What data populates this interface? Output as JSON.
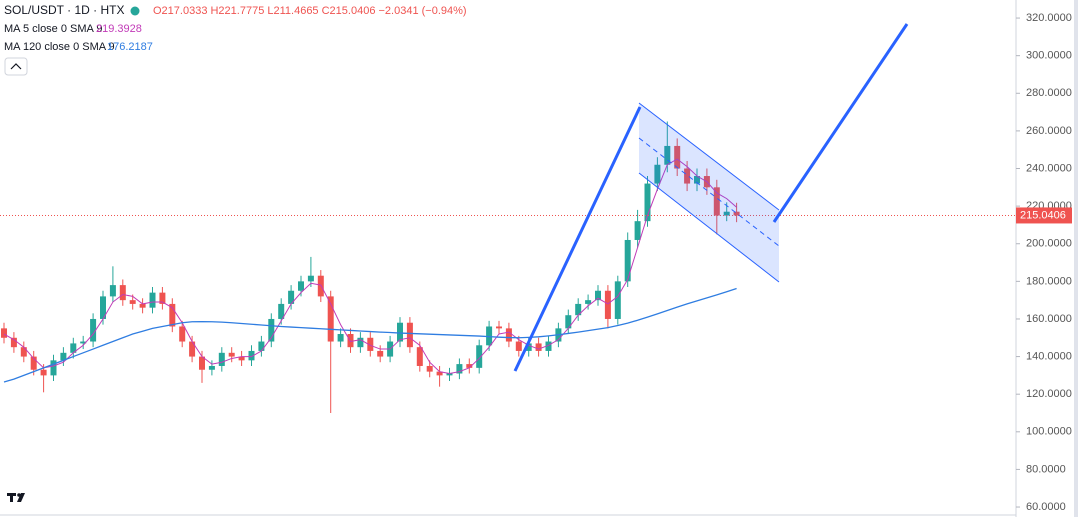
{
  "chart_data": {
    "type": "candlestick",
    "title": "SOL/USDT · 1D · HTX",
    "ohlc_legend": "O217.0333 H221.7775 L211.4665 C215.0406 −2.0341 (−0.94%)",
    "open": [
      155,
      150,
      145,
      140,
      133,
      130,
      138,
      142,
      147,
      148,
      160,
      172,
      178,
      170,
      168,
      166,
      174,
      168,
      156,
      148,
      140,
      133,
      135,
      142,
      140,
      138,
      143,
      148,
      160,
      168,
      175,
      180,
      183,
      172,
      148,
      152,
      145,
      150,
      143,
      140,
      148,
      158,
      145,
      135,
      132,
      130,
      131,
      136,
      134,
      146,
      156,
      155,
      148,
      143,
      147,
      143,
      148,
      155,
      162,
      168,
      170,
      175,
      160,
      180,
      202,
      212,
      232,
      242,
      252,
      240,
      232,
      236,
      230,
      215,
      217.0333
    ],
    "high": [
      158,
      153,
      148,
      143,
      136,
      141,
      145,
      150,
      151,
      163,
      175,
      188,
      181,
      173,
      171,
      177,
      177,
      171,
      159,
      151,
      143,
      138,
      145,
      145,
      143,
      146,
      151,
      163,
      171,
      178,
      183,
      193,
      186,
      175,
      155,
      155,
      153,
      153,
      146,
      151,
      161,
      161,
      148,
      138,
      135,
      134,
      139,
      139,
      149,
      159,
      159,
      158,
      151,
      150,
      150,
      151,
      158,
      165,
      171,
      173,
      178,
      178,
      183,
      206,
      218,
      236,
      246,
      265,
      256,
      244,
      240,
      240,
      234,
      222,
      221.7775
    ],
    "low": [
      147,
      142,
      137,
      130,
      121,
      127,
      135,
      139,
      144,
      145,
      157,
      169,
      167,
      165,
      163,
      163,
      165,
      153,
      145,
      137,
      126,
      130,
      132,
      137,
      135,
      135,
      140,
      145,
      157,
      165,
      172,
      177,
      169,
      110,
      145,
      142,
      142,
      140,
      137,
      137,
      145,
      142,
      132,
      129,
      124,
      127,
      128,
      131,
      131,
      143,
      152,
      145,
      140,
      140,
      140,
      140,
      145,
      152,
      159,
      165,
      167,
      155,
      157,
      177,
      198,
      209,
      228,
      238,
      236,
      228,
      228,
      226,
      205,
      212,
      211.4665
    ],
    "close": [
      150,
      145,
      140,
      133,
      130,
      138,
      142,
      147,
      148,
      160,
      172,
      178,
      170,
      168,
      166,
      174,
      168,
      156,
      148,
      140,
      133,
      135,
      142,
      140,
      138,
      143,
      148,
      160,
      168,
      175,
      180,
      183,
      172,
      148,
      152,
      145,
      150,
      143,
      140,
      148,
      158,
      145,
      135,
      132,
      130,
      131,
      136,
      134,
      146,
      156,
      155,
      148,
      143,
      147,
      143,
      148,
      155,
      162,
      168,
      170,
      175,
      160,
      180,
      202,
      212,
      232,
      242,
      252,
      240,
      232,
      236,
      230,
      215,
      217.0333,
      215.0406
    ],
    "up_color": "#26a69a",
    "down_color": "#ef5350",
    "overlays": [
      {
        "name": "MA 5 close 0 SMA 9",
        "color": "#c23bb8",
        "values": [
          152,
          149,
          145,
          139,
          134,
          135,
          137,
          142,
          146,
          152,
          160,
          169,
          173,
          172,
          168,
          169,
          169,
          166,
          158,
          148,
          140,
          136,
          137,
          139,
          140,
          140,
          143,
          150,
          159,
          168,
          174,
          179,
          178,
          168,
          157,
          148,
          149,
          146,
          144,
          144,
          149,
          150,
          146,
          137,
          132,
          131,
          132,
          134,
          139,
          145,
          152,
          153,
          149,
          146,
          144,
          146,
          149,
          155,
          162,
          167,
          171,
          168,
          172,
          181,
          198,
          215,
          229,
          242,
          245,
          241,
          236,
          233,
          227,
          224,
          219.3928
        ]
      },
      {
        "name": "MA 120 close 0 SMA 9",
        "color": "#2f7de1",
        "values": [
          126.5,
          128,
          130,
          132,
          134,
          136,
          138,
          140,
          142,
          144,
          146,
          148,
          150,
          152,
          153.5,
          155,
          156,
          157,
          158,
          158.5,
          158.6,
          158.5,
          158.3,
          158,
          157.6,
          157.2,
          156.8,
          156.4,
          156,
          155.7,
          155.4,
          155.1,
          154.8,
          154.5,
          154.2,
          153.9,
          153.6,
          153.3,
          153,
          152.8,
          152.5,
          152.3,
          152.1,
          151.9,
          151.7,
          151.5,
          151.3,
          151.1,
          150.9,
          150.6,
          150.3,
          150.1,
          150,
          150.2,
          150.5,
          151,
          151.6,
          152.3,
          153,
          153.8,
          154.6,
          155.4,
          156.5,
          157.8,
          159.3,
          161,
          162.7,
          164.5,
          166.3,
          168,
          169.6,
          171.2,
          172.8,
          174.5,
          176.2187
        ]
      }
    ],
    "last_price": 215.0406,
    "ylim": [
      54.7,
      329.6
    ],
    "yticks": [
      {
        "value": 60,
        "label": "60.0000"
      },
      {
        "value": 80,
        "label": "80.0000"
      },
      {
        "value": 100,
        "label": "100.0000"
      },
      {
        "value": 120,
        "label": "120.0000"
      },
      {
        "value": 140,
        "label": "140.0000"
      },
      {
        "value": 160,
        "label": "160.0000"
      },
      {
        "value": 180,
        "label": "180.0000"
      },
      {
        "value": 200,
        "label": "200.0000"
      },
      {
        "value": 220,
        "label": "220.0000"
      },
      {
        "value": 240,
        "label": "240.0000"
      },
      {
        "value": 260,
        "label": "260.0000"
      },
      {
        "value": 280,
        "label": "280.0000"
      },
      {
        "value": 300,
        "label": "300.0000"
      },
      {
        "value": 320,
        "label": "320.0000"
      }
    ]
  }
}
